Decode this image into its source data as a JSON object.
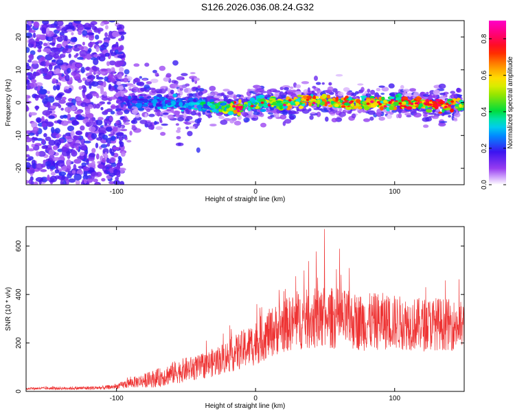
{
  "title": "S126.2026.036.08.24.G32",
  "chart_data": [
    {
      "type": "heatmap",
      "title": "S126.2026.036.08.24.G32",
      "xlabel": "Height of straight line (km)",
      "ylabel": "Frequency (Hz)",
      "xlim": [
        -165,
        150
      ],
      "ylim": [
        -25,
        25
      ],
      "xticks": [
        -100,
        0,
        100
      ],
      "yticks": [
        -20,
        -10,
        0,
        10,
        20
      ],
      "colorbar": {
        "label": "Normalized spectral amplitude",
        "range": [
          0.0,
          0.9
        ],
        "ticks": [
          0.0,
          0.2,
          0.4,
          0.6,
          0.8
        ],
        "colormap": "rainbow"
      },
      "ridge": {
        "description_points": [
          {
            "x": -95,
            "y": 0.5,
            "amp": 0.22
          },
          {
            "x": -80,
            "y": 0.0,
            "amp": 0.28
          },
          {
            "x": -60,
            "y": 0.0,
            "amp": 0.32
          },
          {
            "x": -40,
            "y": -0.5,
            "amp": 0.38
          },
          {
            "x": -20,
            "y": -1.5,
            "amp": 0.55
          },
          {
            "x": -13,
            "y": -1.8,
            "amp": 0.85
          },
          {
            "x": 0,
            "y": -0.2,
            "amp": 0.5
          },
          {
            "x": 20,
            "y": -0.3,
            "amp": 0.6
          },
          {
            "x": 35,
            "y": 0.8,
            "amp": 0.7
          },
          {
            "x": 60,
            "y": 0.0,
            "amp": 0.72
          },
          {
            "x": 80,
            "y": -0.2,
            "amp": 0.65
          },
          {
            "x": 100,
            "y": 0.0,
            "amp": 0.75
          },
          {
            "x": 120,
            "y": -0.3,
            "amp": 0.8
          },
          {
            "x": 135,
            "y": -0.8,
            "amp": 0.85
          },
          {
            "x": 148,
            "y": -0.5,
            "amp": 0.6
          }
        ]
      }
    },
    {
      "type": "line",
      "xlabel": "Height of straight line (km)",
      "ylabel": "SNR (10 * v/v)",
      "xlim": [
        -165,
        150
      ],
      "ylim": [
        0,
        680
      ],
      "xticks": [
        -100,
        0,
        100
      ],
      "yticks": [
        0,
        200,
        400,
        600
      ],
      "color": "#ee3333",
      "envelope": {
        "x": [
          -165,
          -130,
          -110,
          -100,
          -90,
          -80,
          -70,
          -60,
          -50,
          -40,
          -30,
          -20,
          -10,
          0,
          10,
          20,
          30,
          40,
          50,
          60,
          70,
          80,
          90,
          100,
          110,
          120,
          130,
          140,
          150
        ],
        "mean": [
          12,
          13,
          15,
          20,
          35,
          45,
          55,
          75,
          90,
          100,
          120,
          145,
          170,
          200,
          240,
          270,
          290,
          300,
          305,
          300,
          290,
          285,
          290,
          285,
          280,
          275,
          280,
          275,
          270
        ],
        "spread": [
          6,
          8,
          10,
          12,
          25,
          35,
          45,
          55,
          60,
          60,
          70,
          80,
          95,
          110,
          120,
          130,
          140,
          150,
          150,
          150,
          140,
          140,
          140,
          135,
          130,
          130,
          130,
          125,
          120
        ]
      }
    }
  ]
}
